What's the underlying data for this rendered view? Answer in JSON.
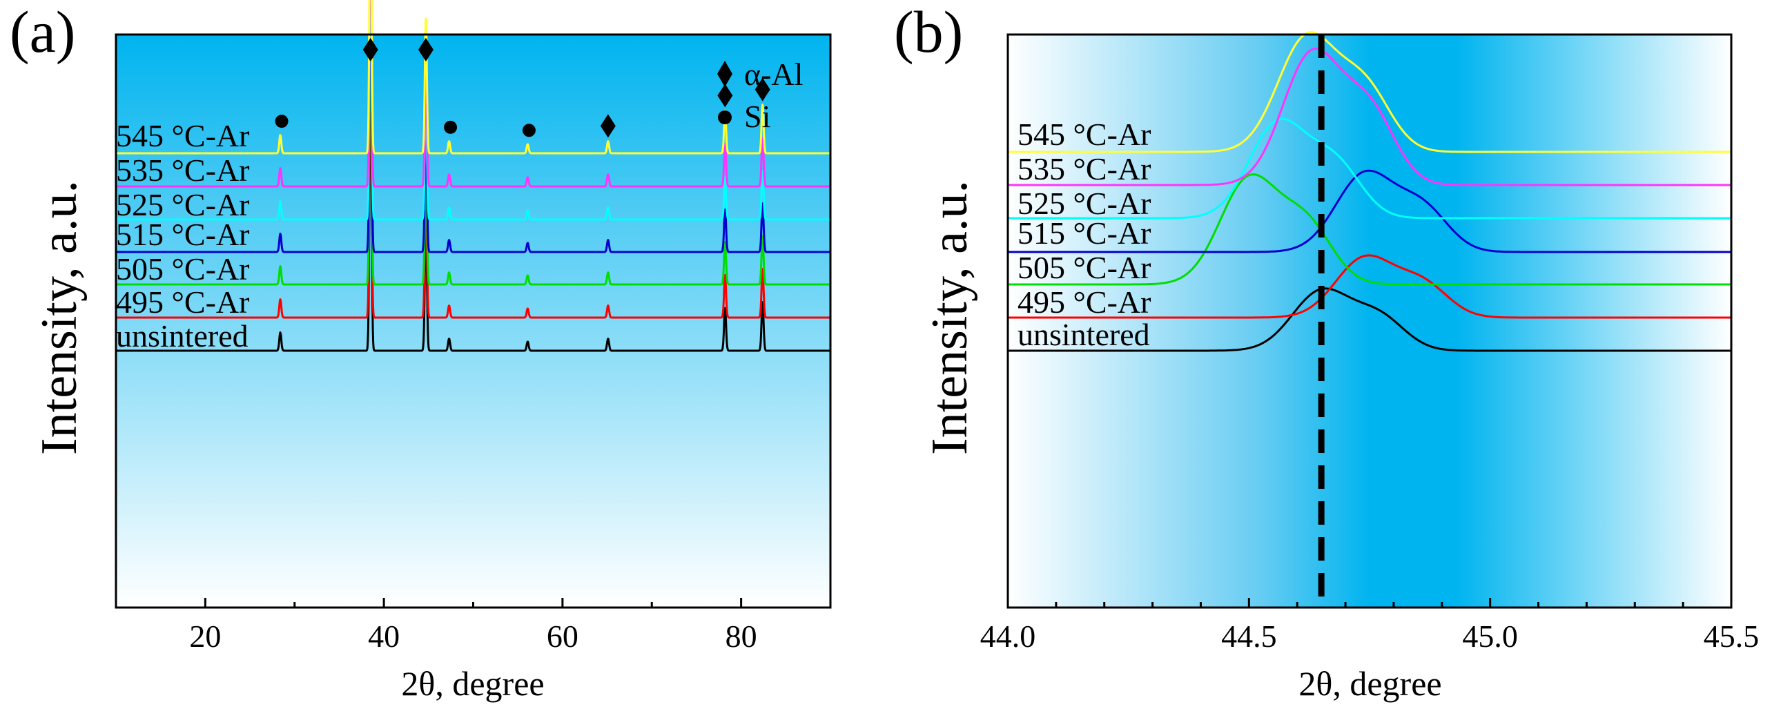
{
  "figure_labels": {
    "a": "(a)",
    "b": "(b)"
  },
  "colors": {
    "unsintered": "#000000",
    "c495": "#ff0000",
    "c505": "#00dd00",
    "c515": "#0000cc",
    "c525": "#00ffff",
    "c535": "#ff33ff",
    "c545": "#ffff33",
    "gradient_strong": "#00b4ef",
    "gradient_light": "#ffffff"
  },
  "chart_data": [
    {
      "type": "line",
      "panel": "a",
      "title": "",
      "xlabel": "2θ, degree",
      "ylabel": "Intensity, a.u.",
      "xlim": [
        10,
        90
      ],
      "xticks": [
        20,
        40,
        60,
        80
      ],
      "grid": false,
      "series": [
        {
          "name": "unsintered",
          "label": "unsintered",
          "color_key": "unsintered"
        },
        {
          "name": "495 °C-Ar",
          "label": "495 °C-Ar",
          "color_key": "c495"
        },
        {
          "name": "505 °C-Ar",
          "label": "505 °C-Ar",
          "color_key": "c505"
        },
        {
          "name": "515 °C-Ar",
          "label": "515 °C-Ar",
          "color_key": "c515"
        },
        {
          "name": "525 °C-Ar",
          "label": "525 °C-Ar",
          "color_key": "c525"
        },
        {
          "name": "535 °C-Ar",
          "label": "535 °C-Ar",
          "color_key": "c535"
        },
        {
          "name": "545 °C-Ar",
          "label": "545 °C-Ar",
          "color_key": "c545"
        }
      ],
      "peaks": [
        {
          "two_theta": 28.4,
          "phase": "Si",
          "intensity": 0.06
        },
        {
          "two_theta": 38.5,
          "phase": "α-Al",
          "intensity": 1.0
        },
        {
          "two_theta": 44.7,
          "phase": "α-Al",
          "intensity": 0.45
        },
        {
          "two_theta": 47.3,
          "phase": "Si",
          "intensity": 0.04
        },
        {
          "two_theta": 56.1,
          "phase": "Si",
          "intensity": 0.03
        },
        {
          "two_theta": 65.1,
          "phase": "α-Al",
          "intensity": 0.04
        },
        {
          "two_theta": 78.2,
          "phase": "α-Al",
          "intensity": 0.14
        },
        {
          "two_theta": 82.4,
          "phase": "α-Al",
          "intensity": 0.16
        }
      ],
      "markers": [
        {
          "two_theta": 28.4,
          "symbol": "circle"
        },
        {
          "two_theta": 38.5,
          "symbol": "diamond"
        },
        {
          "two_theta": 44.7,
          "symbol": "diamond"
        },
        {
          "two_theta": 47.3,
          "symbol": "circle"
        },
        {
          "two_theta": 56.1,
          "symbol": "circle"
        },
        {
          "two_theta": 65.1,
          "symbol": "diamond"
        },
        {
          "two_theta": 78.2,
          "symbol": "diamond"
        },
        {
          "two_theta": 82.4,
          "symbol": "diamond"
        }
      ],
      "legend": [
        {
          "symbol": "diamond",
          "text": "α-Al"
        },
        {
          "symbol": "circle",
          "text": "Si"
        }
      ],
      "legend_position": "top-right"
    },
    {
      "type": "line",
      "panel": "b",
      "title": "",
      "xlabel": "2θ, degree",
      "ylabel": "Intensity, a.u.",
      "xlim": [
        44.0,
        45.5
      ],
      "xticks": [
        "44.0",
        "44.5",
        "45.0",
        "45.5"
      ],
      "reference_line_x": 44.65,
      "grid": false,
      "series": [
        {
          "name": "unsintered",
          "label": "unsintered",
          "color_key": "unsintered",
          "peak_center": 44.65,
          "peak_height": 0.52
        },
        {
          "name": "495 °C-Ar",
          "label": "495 °C-Ar",
          "color_key": "c495",
          "peak_center": 44.74,
          "peak_height": 0.52
        },
        {
          "name": "505 °C-Ar",
          "label": "505 °C-Ar",
          "color_key": "c505",
          "peak_center": 44.5,
          "peak_height": 0.92
        },
        {
          "name": "515 °C-Ar",
          "label": "515 °C-Ar",
          "color_key": "c515",
          "peak_center": 44.74,
          "peak_height": 0.68
        },
        {
          "name": "525 °C-Ar",
          "label": "525 °C-Ar",
          "color_key": "c525",
          "peak_center": 44.56,
          "peak_height": 0.83
        },
        {
          "name": "535 °C-Ar",
          "label": "535 °C-Ar",
          "color_key": "c535",
          "peak_center": 44.63,
          "peak_height": 1.14
        },
        {
          "name": "545 °C-Ar",
          "label": "545 °C-Ar",
          "color_key": "c545",
          "peak_center": 44.62,
          "peak_height": 1.0
        }
      ]
    }
  ]
}
